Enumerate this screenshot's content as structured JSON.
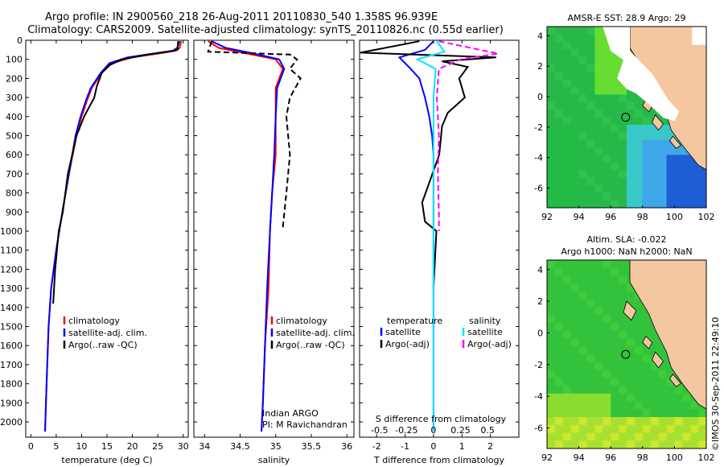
{
  "header": {
    "title_line1": "Argo profile: IN 2900560_218 26-Aug-2011 20110830_540 1.358S 96.939E",
    "title_line2": "Climatology: CARS2009. Satellite-adjusted climatology: synTS_20110826.nc (0.55d earlier)"
  },
  "colors": {
    "climatology": "#ff0000",
    "satellite": "#0000ff",
    "argo": "#000000",
    "satellite_diff_S": "#00e5ff",
    "argo_diff_S": "#ff00ff",
    "land": "#f5c7a0",
    "sea_green": "#33cc33"
  },
  "chart_data": [
    {
      "type": "line",
      "name": "temperature-profile",
      "xlabel": "temperature (deg C)",
      "ylabel": "",
      "xlim": [
        -1,
        31
      ],
      "ylim": [
        2080,
        0
      ],
      "xticks": [
        0,
        5,
        10,
        15,
        20,
        25,
        30
      ],
      "yticks": [
        0,
        100,
        200,
        300,
        400,
        500,
        600,
        700,
        800,
        900,
        1000,
        1100,
        1200,
        1300,
        1400,
        1500,
        1600,
        1700,
        1800,
        1900,
        2000
      ],
      "legend": [
        "climatology",
        "satellite-adj. clim.",
        "Argo(..raw -QC)"
      ],
      "legend_position": "lower-center",
      "series": [
        {
          "name": "climatology",
          "style": "solid",
          "x": [
            29.6,
            29.3,
            28.5,
            25,
            20,
            16,
            14,
            12,
            11,
            10,
            9,
            7.5,
            6.2,
            5,
            4,
            3.5,
            3.1,
            2.8
          ],
          "y": [
            5,
            40,
            55,
            70,
            90,
            120,
            170,
            250,
            320,
            400,
            500,
            700,
            900,
            1100,
            1300,
            1500,
            1800,
            2050
          ]
        },
        {
          "name": "satellite-adj. clim.",
          "style": "solid",
          "x": [
            29.3,
            28.8,
            28,
            24,
            19,
            15.5,
            13.8,
            11.8,
            10.8,
            9.8,
            8.8,
            7.5,
            6.2,
            5,
            4,
            3.5,
            3.1,
            2.8
          ],
          "y": [
            5,
            40,
            55,
            70,
            90,
            120,
            170,
            250,
            320,
            400,
            500,
            700,
            900,
            1100,
            1300,
            1500,
            1800,
            2050
          ]
        },
        {
          "name": "Argo(..raw -QC)",
          "style": "solid",
          "x": [
            29,
            28.9,
            27,
            23,
            18,
            15.5,
            14,
            13,
            12.5,
            10.5,
            9,
            7.3,
            6.3,
            5.5,
            4.8,
            4.4
          ],
          "y": [
            5,
            50,
            60,
            75,
            100,
            130,
            170,
            240,
            300,
            400,
            500,
            700,
            900,
            1000,
            1200,
            1380
          ]
        }
      ]
    },
    {
      "type": "line",
      "name": "salinity-profile",
      "xlabel": "salinity",
      "xlim": [
        33.85,
        36.1
      ],
      "ylim": [
        2080,
        0
      ],
      "xticks": [
        34,
        34.5,
        35,
        35.5,
        36
      ],
      "legend": [
        "climatology",
        "satellite-adj. clim.",
        "Argo(..raw -QC)"
      ],
      "legend_position": "lower-center",
      "annotation": [
        "Indian ARGO",
        "PI: M Ravichandran"
      ],
      "series": [
        {
          "name": "climatology",
          "style": "solid",
          "x": [
            34.05,
            34.2,
            34.6,
            35.0,
            35.1,
            35.0,
            35.0,
            35.0,
            34.95,
            34.92,
            34.9,
            34.85,
            34.82,
            34.8
          ],
          "y": [
            5,
            40,
            70,
            100,
            150,
            250,
            400,
            600,
            800,
            1000,
            1300,
            1600,
            1900,
            2050
          ]
        },
        {
          "name": "satellite-adj. clim.",
          "style": "solid",
          "x": [
            34.1,
            34.3,
            34.7,
            35.05,
            35.12,
            35.02,
            35.0,
            34.98,
            34.95,
            34.92,
            34.88,
            34.85,
            34.82,
            34.8
          ],
          "y": [
            5,
            40,
            70,
            100,
            150,
            250,
            400,
            600,
            800,
            1000,
            1300,
            1600,
            1900,
            2050
          ]
        },
        {
          "name": "Argo(..raw -QC)",
          "style": "dashed",
          "x": [
            34.1,
            34.05,
            35.2,
            35.3,
            35.2,
            35.35,
            35.2,
            35.15,
            35.2,
            35.15,
            35.1
          ],
          "y": [
            5,
            60,
            75,
            100,
            150,
            200,
            300,
            400,
            600,
            800,
            980
          ]
        }
      ]
    },
    {
      "type": "line",
      "name": "difference-profile",
      "xlabel": "T difference from climatology",
      "xlabel_top": "S difference from climatology",
      "xlim": [
        -2.6,
        3.0
      ],
      "ylim": [
        2080,
        0
      ],
      "xticks": [
        -2,
        -1,
        0,
        1,
        2
      ],
      "xticks_S": [
        -0.5,
        -0.25,
        0,
        0.25,
        0.5
      ],
      "legend_T_title": "temperature",
      "legend_S_title": "salinity",
      "legend_T": [
        "satellite",
        "Argo(-adj)"
      ],
      "legend_S": [
        "satellite",
        "Argo(-adj)"
      ],
      "series": [
        {
          "name": "T satellite",
          "style": "solid",
          "x": [
            0,
            -0.3,
            -1.2,
            -0.8,
            -0.5,
            -0.3,
            -0.15,
            -0.05,
            0,
            0,
            0
          ],
          "y": [
            5,
            50,
            90,
            150,
            200,
            300,
            400,
            500,
            600,
            800,
            2050
          ]
        },
        {
          "name": "T Argo(-adj)",
          "style": "solid",
          "x": [
            -0.5,
            -4,
            2.2,
            0.3,
            1.2,
            0.9,
            1.1,
            0.5,
            0.3,
            0.2,
            -0.4,
            -0.3,
            0.1,
            0
          ],
          "y": [
            5,
            65,
            90,
            110,
            140,
            200,
            300,
            380,
            450,
            600,
            850,
            950,
            1000,
            1300
          ]
        },
        {
          "name": "S satellite",
          "style": "solid",
          "x": [
            0.03,
            0.1,
            -0.15,
            0.02,
            0,
            0,
            0
          ],
          "y": [
            5,
            60,
            100,
            150,
            300,
            600,
            2050
          ]
        },
        {
          "name": "S Argo(-adj)",
          "style": "dashed",
          "x": [
            0.05,
            0.6,
            0.25,
            0.05,
            0.03,
            0.05,
            0.04,
            0.05,
            0.05
          ],
          "y": [
            5,
            70,
            100,
            150,
            300,
            500,
            700,
            900,
            1000
          ]
        }
      ]
    },
    {
      "type": "heatmap",
      "name": "sst-map",
      "title": "AMSR-E SST: 28.9 Argo: 29",
      "xlim": [
        92,
        102
      ],
      "ylim": [
        -7.3,
        4.6
      ],
      "xticks": [
        92,
        94,
        96,
        98,
        100,
        102
      ],
      "yticks": [
        -6,
        -4,
        -2,
        0,
        2,
        4
      ],
      "argo_position": [
        96.939,
        -1.358
      ]
    },
    {
      "type": "heatmap",
      "name": "sla-map",
      "title_line1": "Altim. SLA: -0.022",
      "title_line2": "Argo h1000: NaN h2000: NaN",
      "xlim": [
        92,
        102
      ],
      "ylim": [
        -7.3,
        4.6
      ],
      "xticks": [
        92,
        94,
        96,
        98,
        100,
        102
      ],
      "yticks": [
        -6,
        -4,
        -2,
        0,
        2,
        4
      ],
      "argo_position": [
        96.939,
        -1.358
      ]
    }
  ],
  "watermark": "©IMOS 30-Sep-2011 22:49:10"
}
